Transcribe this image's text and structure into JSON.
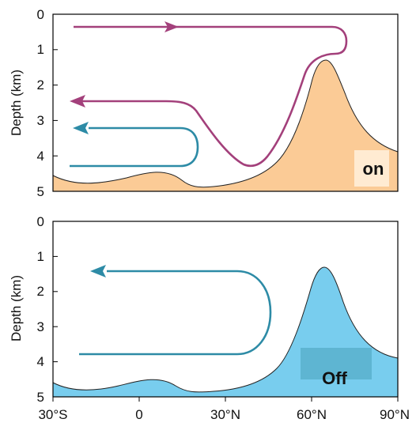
{
  "colors": {
    "seafloor_on": "#FBCB96",
    "seafloor_off": "#78CDEE",
    "off_label_box": "#5EB5D2",
    "on_label_box": "#FFEBD2",
    "upper_cell": "#A3407B",
    "lower_cell": "#2D8BA6",
    "outline": "#222222"
  },
  "panels": [
    {
      "y_label": "Depth (km)",
      "y_ticks": [
        "0",
        "1",
        "2",
        "3",
        "4",
        "5"
      ],
      "state_label": "on"
    },
    {
      "y_label": "Depth (km)",
      "y_ticks": [
        "0",
        "1",
        "2",
        "3",
        "4",
        "5"
      ],
      "state_label": "Off"
    }
  ],
  "x_ticks": [
    "30°S",
    "0",
    "30°N",
    "60°N",
    "90°N"
  ]
}
